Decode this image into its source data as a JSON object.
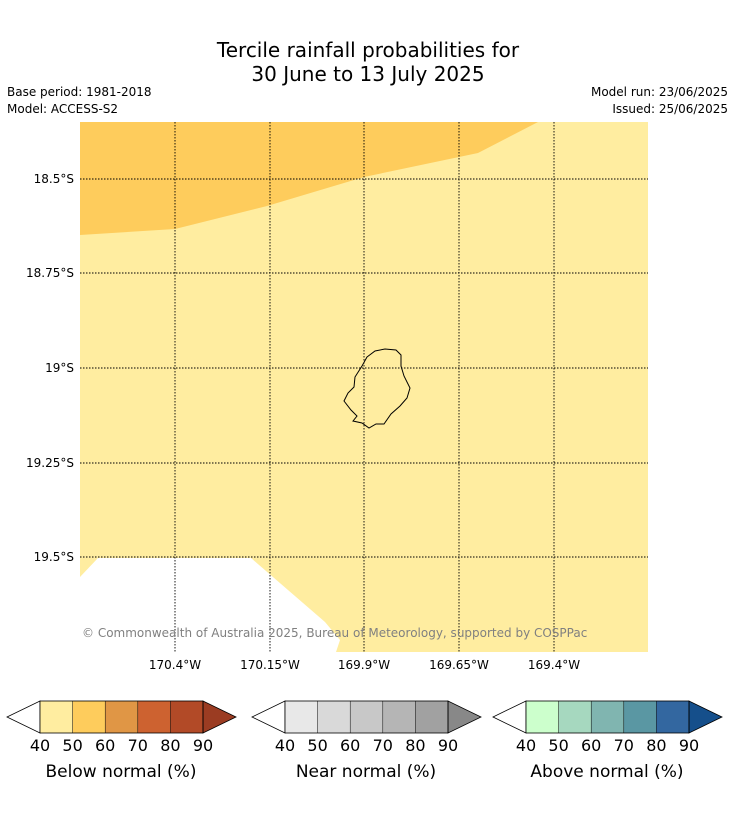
{
  "header": {
    "title_line1": "Tercile rainfall probabilities for",
    "title_line2": "30 June to 13 July 2025",
    "base_period": "Base period: 1981-2018",
    "model": "Model: ACCESS-S2",
    "model_run": "Model run: 23/06/2025",
    "issued": "Issued: 25/06/2025"
  },
  "map": {
    "copyright": "© Commonwealth of Australia 2025, Bureau of Meteorology, supported by COSPPac",
    "lat_labels": [
      "18.5°S",
      "18.75°S",
      "19°S",
      "19.25°S",
      "19.5°S"
    ],
    "lon_labels": [
      "170.4°W",
      "170.15°W",
      "169.9°W",
      "169.65°W",
      "169.4°W"
    ],
    "fill_colors": {
      "below_50": "#ffeda0",
      "below_60": "#fecc5c"
    }
  },
  "legends": [
    {
      "label": "Below normal (%)",
      "ticks": [
        "40",
        "50",
        "60",
        "70",
        "80",
        "90"
      ],
      "colors": [
        "#ffeda0",
        "#fecc5c",
        "#e09645",
        "#cd6230",
        "#b24a27",
        "#9b3c22"
      ]
    },
    {
      "label": "Near normal (%)",
      "ticks": [
        "40",
        "50",
        "60",
        "70",
        "80",
        "90"
      ],
      "colors": [
        "#e8e8e8",
        "#d9d9d9",
        "#c8c8c8",
        "#b5b5b5",
        "#a1a1a1",
        "#888888"
      ]
    },
    {
      "label": "Above normal (%)",
      "ticks": [
        "40",
        "50",
        "60",
        "70",
        "80",
        "90"
      ],
      "colors": [
        "#ccffcc",
        "#a6d8bf",
        "#80b5b0",
        "#5a97a3",
        "#3367a0",
        "#154f8b"
      ]
    }
  ]
}
